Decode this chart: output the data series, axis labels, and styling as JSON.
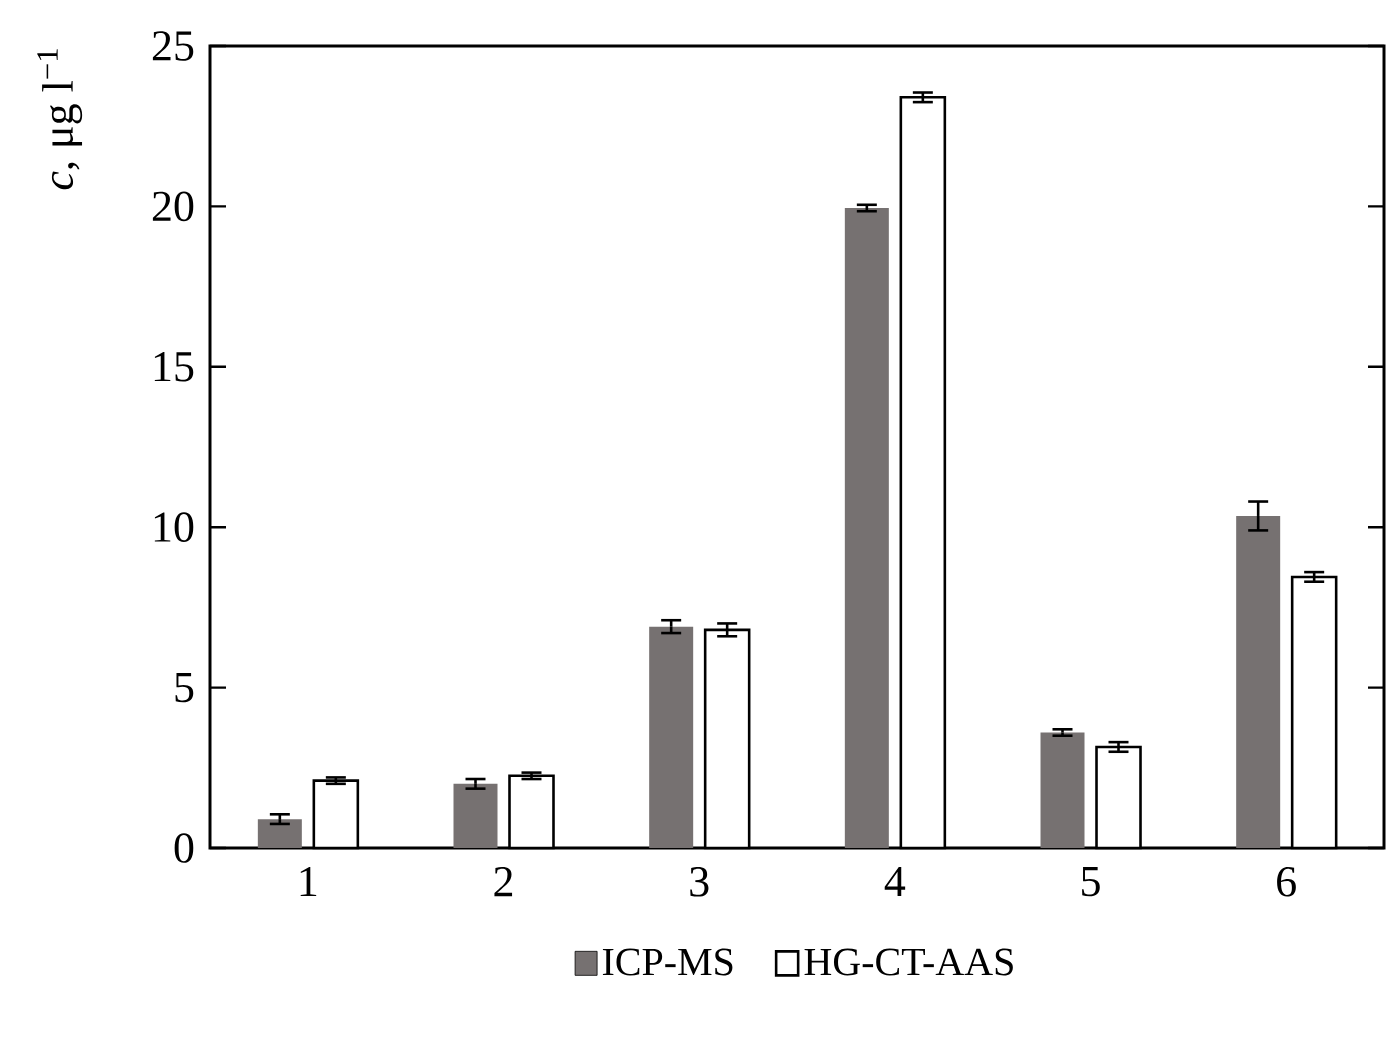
{
  "chart_data": {
    "type": "bar",
    "ylabel": "*c*, μg l$^{−1}$",
    "categories": [
      "1",
      "2",
      "3",
      "4",
      "5",
      "6"
    ],
    "series": [
      {
        "name": "ICP-MS",
        "color": "#767171",
        "values": [
          0.9,
          2.0,
          6.9,
          19.95,
          3.6,
          10.35
        ],
        "errors": [
          0.15,
          0.15,
          0.2,
          0.1,
          0.1,
          0.45
        ]
      },
      {
        "name": "HG-CT-AAS",
        "color": "#ffffff",
        "values": [
          2.1,
          2.25,
          6.8,
          23.4,
          3.15,
          8.45
        ],
        "errors": [
          0.1,
          0.1,
          0.2,
          0.15,
          0.15,
          0.15
        ]
      }
    ],
    "ylim": [
      0,
      25
    ],
    "yticks": [
      0,
      5,
      10,
      15,
      20,
      25
    ],
    "grid": false,
    "legend": "bottom"
  }
}
